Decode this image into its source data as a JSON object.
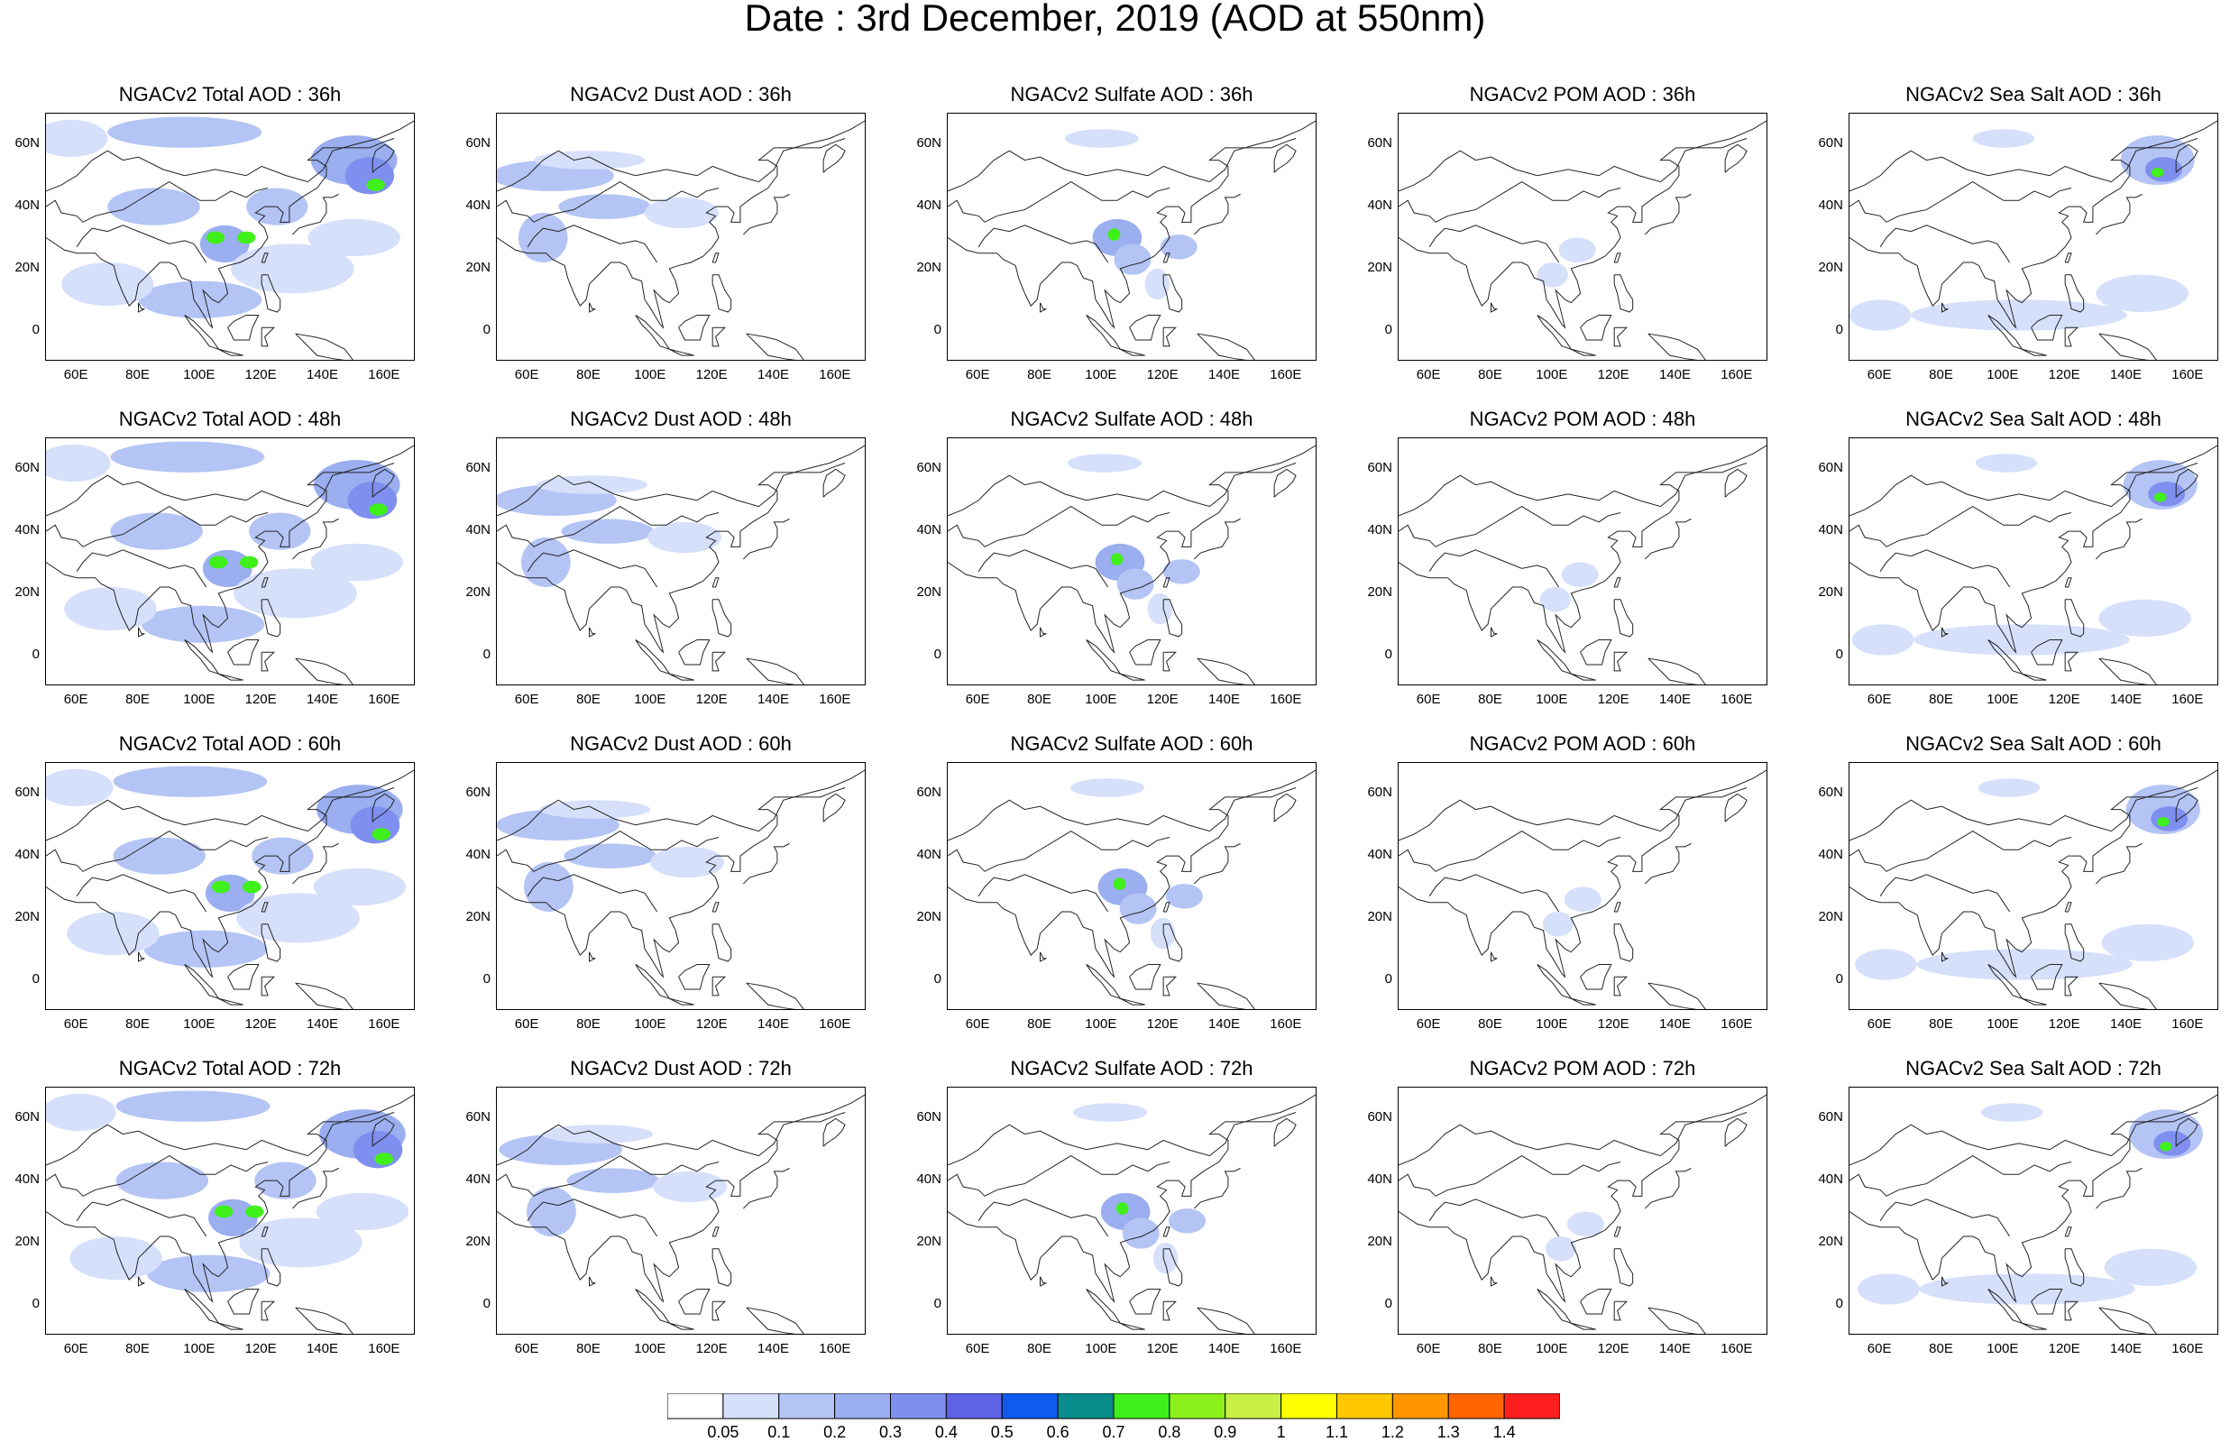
{
  "title": "Date : 3rd December, 2019 (AOD at 550nm)",
  "panels": [
    {
      "title": "NGACv2 Total AOD : 36h",
      "species": "total",
      "hour": 36
    },
    {
      "title": "NGACv2 Dust AOD : 36h",
      "species": "dust",
      "hour": 36
    },
    {
      "title": "NGACv2 Sulfate AOD : 36h",
      "species": "sulfate",
      "hour": 36
    },
    {
      "title": "NGACv2 POM AOD : 36h",
      "species": "pom",
      "hour": 36
    },
    {
      "title": "NGACv2 Sea Salt AOD : 36h",
      "species": "seasalt",
      "hour": 36
    },
    {
      "title": "NGACv2 Total AOD : 48h",
      "species": "total",
      "hour": 48
    },
    {
      "title": "NGACv2 Dust AOD : 48h",
      "species": "dust",
      "hour": 48
    },
    {
      "title": "NGACv2 Sulfate AOD : 48h",
      "species": "sulfate",
      "hour": 48
    },
    {
      "title": "NGACv2 POM AOD : 48h",
      "species": "pom",
      "hour": 48
    },
    {
      "title": "NGACv2 Sea Salt AOD : 48h",
      "species": "seasalt",
      "hour": 48
    },
    {
      "title": "NGACv2 Total AOD : 60h",
      "species": "total",
      "hour": 60
    },
    {
      "title": "NGACv2 Dust AOD : 60h",
      "species": "dust",
      "hour": 60
    },
    {
      "title": "NGACv2 Sulfate AOD : 60h",
      "species": "sulfate",
      "hour": 60
    },
    {
      "title": "NGACv2 POM AOD : 60h",
      "species": "pom",
      "hour": 60
    },
    {
      "title": "NGACv2 Sea Salt AOD : 60h",
      "species": "seasalt",
      "hour": 60
    },
    {
      "title": "NGACv2 Total AOD : 72h",
      "species": "total",
      "hour": 72
    },
    {
      "title": "NGACv2 Dust AOD : 72h",
      "species": "dust",
      "hour": 72
    },
    {
      "title": "NGACv2 Sulfate AOD : 72h",
      "species": "sulfate",
      "hour": 72
    },
    {
      "title": "NGACv2 POM AOD : 72h",
      "species": "pom",
      "hour": 72
    },
    {
      "title": "NGACv2 Sea Salt  AOD : 72h",
      "species": "seasalt",
      "hour": 72
    }
  ],
  "lat_ticks": [
    "60N",
    "40N",
    "20N",
    "0"
  ],
  "lon_ticks": [
    "60E",
    "80E",
    "100E",
    "120E",
    "140E",
    "160E"
  ],
  "colorbar": {
    "labels": [
      "0.05",
      "0.1",
      "0.2",
      "0.3",
      "0.4",
      "0.5",
      "0.6",
      "0.7",
      "0.8",
      "0.9",
      "1",
      "1.1",
      "1.2",
      "1.3",
      "1.4"
    ],
    "colors": [
      "#ffffff",
      "#d6e0fb",
      "#b4c4f5",
      "#9aaef0",
      "#7f8ff0",
      "#5e63e6",
      "#0f5bf0",
      "#0a8c8c",
      "#3ff01a",
      "#8cf01a",
      "#c8f046",
      "#ffff00",
      "#ffc800",
      "#ff9600",
      "#ff6400",
      "#ff1e1e"
    ]
  },
  "map_extent": {
    "lon_min": 50,
    "lon_max": 170,
    "lat_min": -10,
    "lat_max": 70
  }
}
